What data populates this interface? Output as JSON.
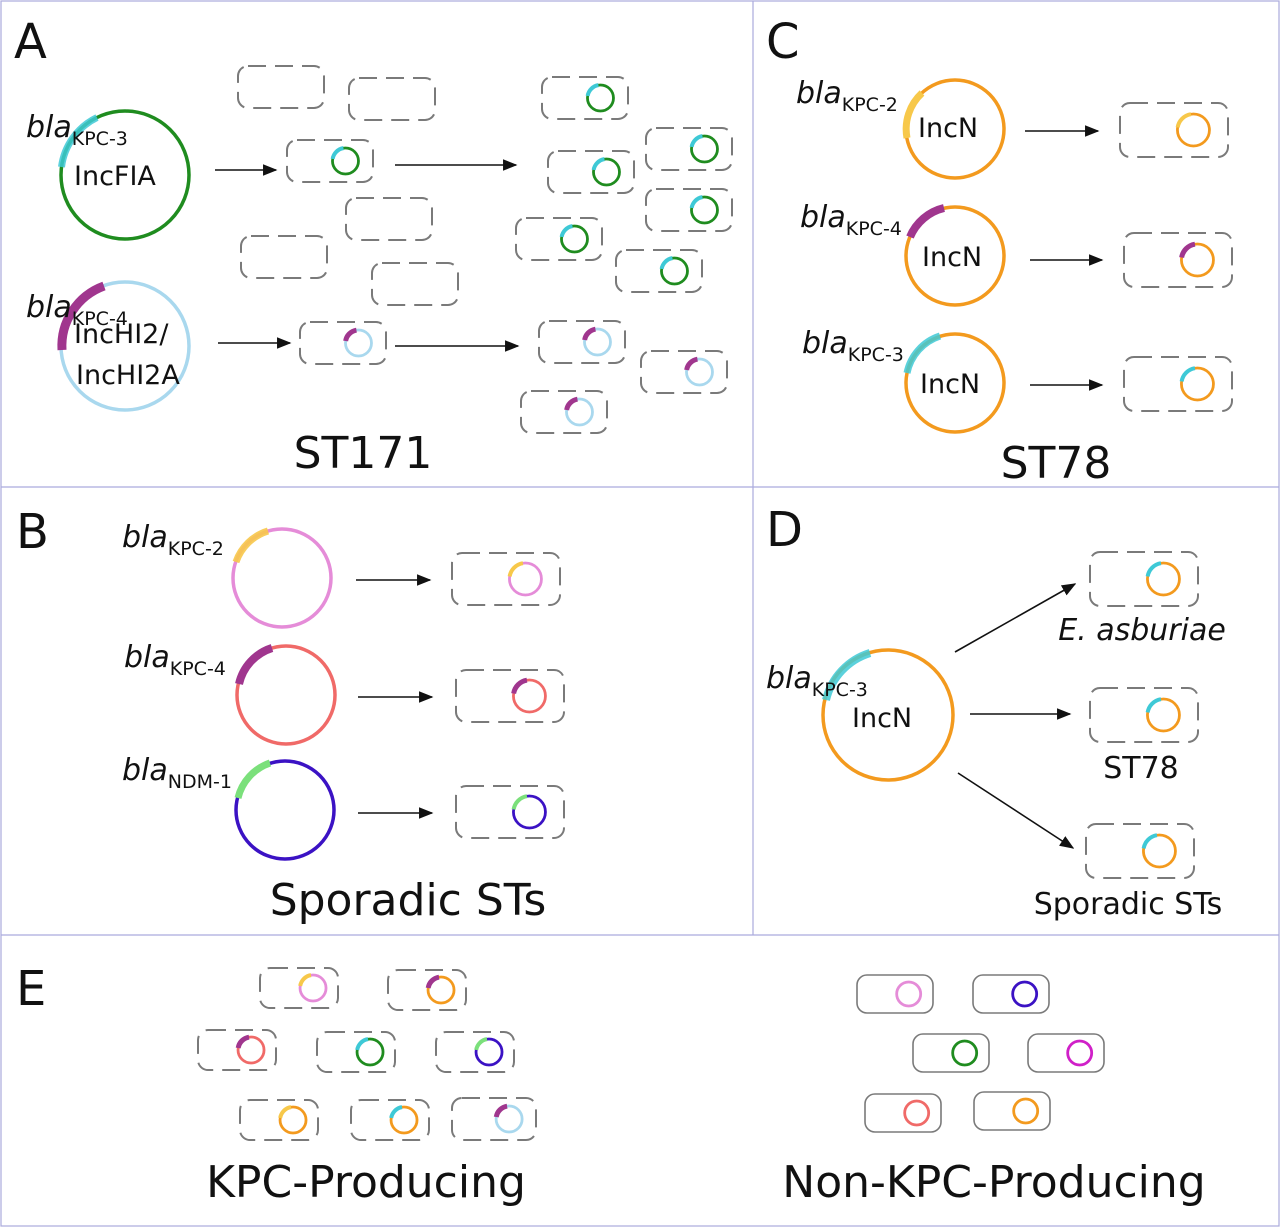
{
  "colors": {
    "kpc3": "#3ec9d6",
    "kpc4": "#a0368e",
    "kpc2": "#f7c84a",
    "ndm1": "#7be07b",
    "green": "#1f8c1f",
    "lightblue": "#a9d8ee",
    "orange": "#f39a1e",
    "pink": "#e58cd8",
    "salmon": "#f06a68",
    "indigo": "#3b12c4",
    "magenta": "#d020c8"
  },
  "gene_prefix": "bla",
  "panels": {
    "A": {
      "letter": "A",
      "caption": "ST171",
      "plasmids": [
        {
          "gene": "KPC-3",
          "inc": "IncFIA"
        },
        {
          "gene": "KPC-4",
          "inc_line1": "IncHI2/",
          "inc_line2": "IncHI2A"
        }
      ]
    },
    "B": {
      "letter": "B",
      "caption": "Sporadic STs",
      "plasmids": [
        {
          "gene": "KPC-2"
        },
        {
          "gene": "KPC-4"
        },
        {
          "gene": "NDM-1"
        }
      ]
    },
    "C": {
      "letter": "C",
      "caption": "ST78",
      "plasmids": [
        {
          "gene": "KPC-2",
          "inc": "IncN"
        },
        {
          "gene": "KPC-4",
          "inc": "IncN"
        },
        {
          "gene": "KPC-3",
          "inc": "IncN"
        }
      ]
    },
    "D": {
      "letter": "D",
      "plasmid": {
        "gene": "KPC-3",
        "inc": "IncN"
      },
      "targets": [
        "E. asburiae",
        "ST78",
        "Sporadic STs"
      ]
    },
    "E": {
      "letter": "E",
      "left_caption": "KPC-Producing",
      "right_caption": "Non-KPC-Producing"
    }
  }
}
